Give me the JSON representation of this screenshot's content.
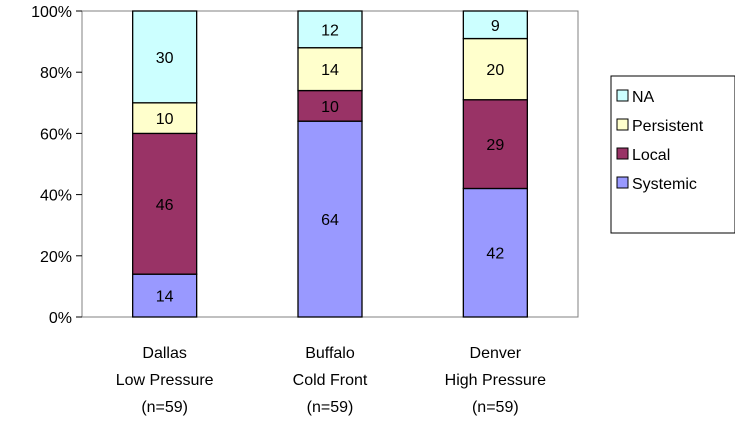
{
  "chart_data": {
    "type": "bar",
    "stacked": true,
    "percent_stacked": true,
    "title": "",
    "xlabel": "",
    "ylabel": "",
    "ylim": [
      0,
      100
    ],
    "y_ticks": [
      "0%",
      "20%",
      "40%",
      "60%",
      "80%",
      "100%"
    ],
    "grid": false,
    "legend_position": "right",
    "categories": [
      [
        "Dallas",
        "Low Pressure",
        "(n=59)"
      ],
      [
        "Buffalo",
        "Cold Front",
        "(n=59)"
      ],
      [
        "Denver",
        "High Pressure",
        "(n=59)"
      ]
    ],
    "series": [
      {
        "name": "Systemic",
        "color": "#9999ff",
        "values": [
          14,
          64,
          42
        ]
      },
      {
        "name": "Local",
        "color": "#993366",
        "values": [
          46,
          10,
          29
        ]
      },
      {
        "name": "Persistent",
        "color": "#ffffcc",
        "values": [
          10,
          14,
          20
        ]
      },
      {
        "name": "NA",
        "color": "#ccffff",
        "values": [
          30,
          12,
          9
        ]
      }
    ],
    "legend_order": [
      "NA",
      "Persistent",
      "Local",
      "Systemic"
    ]
  }
}
